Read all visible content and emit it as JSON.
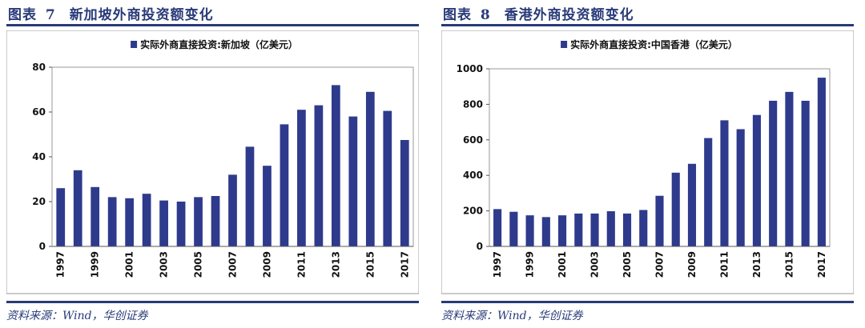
{
  "figures": [
    {
      "title_prefix": "图表",
      "number": "7",
      "title": "新加坡外商投资额变化",
      "source": "资料来源：Wind，华创证券",
      "chart_data": {
        "type": "bar",
        "legend": [
          "实际外商直接投资:新加坡（亿美元）"
        ],
        "categories": [
          "1997",
          "1998",
          "1999",
          "2000",
          "2001",
          "2002",
          "2003",
          "2004",
          "2005",
          "2006",
          "2007",
          "2008",
          "2009",
          "2010",
          "2011",
          "2012",
          "2013",
          "2014",
          "2015",
          "2016",
          "2017"
        ],
        "series": [
          {
            "name": "实际外商直接投资:新加坡（亿美元）",
            "values": [
              26,
              34,
              26.5,
              22,
              21.5,
              23.5,
              20.5,
              20,
              22,
              22.5,
              32,
              44.5,
              36,
              54.5,
              61,
              63,
              72,
              58,
              69,
              60.5,
              47.5
            ]
          }
        ],
        "xtick_labels": [
          "1997",
          "1999",
          "2001",
          "2003",
          "2005",
          "2007",
          "2009",
          "2011",
          "2013",
          "2015",
          "2017"
        ],
        "yticks": [
          0,
          20,
          40,
          60,
          80
        ],
        "ylim": [
          0,
          80
        ],
        "grid": false,
        "legend_position": "top-center",
        "bar_color": "#2e3a8c"
      }
    },
    {
      "title_prefix": "图表",
      "number": "8",
      "title": "香港外商投资额变化",
      "source": "资料来源：Wind，华创证券",
      "chart_data": {
        "type": "bar",
        "legend": [
          "实际外商直接投资:中国香港（亿美元）"
        ],
        "categories": [
          "1997",
          "1998",
          "1999",
          "2000",
          "2001",
          "2002",
          "2003",
          "2004",
          "2005",
          "2006",
          "2007",
          "2008",
          "2009",
          "2010",
          "2011",
          "2012",
          "2013",
          "2014",
          "2015",
          "2016",
          "2017"
        ],
        "series": [
          {
            "name": "实际外商直接投资:中国香港（亿美元）",
            "values": [
              210,
              195,
              175,
              165,
              175,
              185,
              185,
              198,
              185,
              205,
              285,
              415,
              465,
              610,
              710,
              660,
              740,
              820,
              870,
              820,
              950
            ]
          }
        ],
        "xtick_labels": [
          "1997",
          "1999",
          "2001",
          "2003",
          "2005",
          "2007",
          "2009",
          "2011",
          "2013",
          "2015",
          "2017"
        ],
        "yticks": [
          0,
          200,
          400,
          600,
          800,
          1000
        ],
        "ylim": [
          0,
          1000
        ],
        "grid": false,
        "legend_position": "top-center",
        "bar_color": "#2e3a8c"
      }
    }
  ]
}
